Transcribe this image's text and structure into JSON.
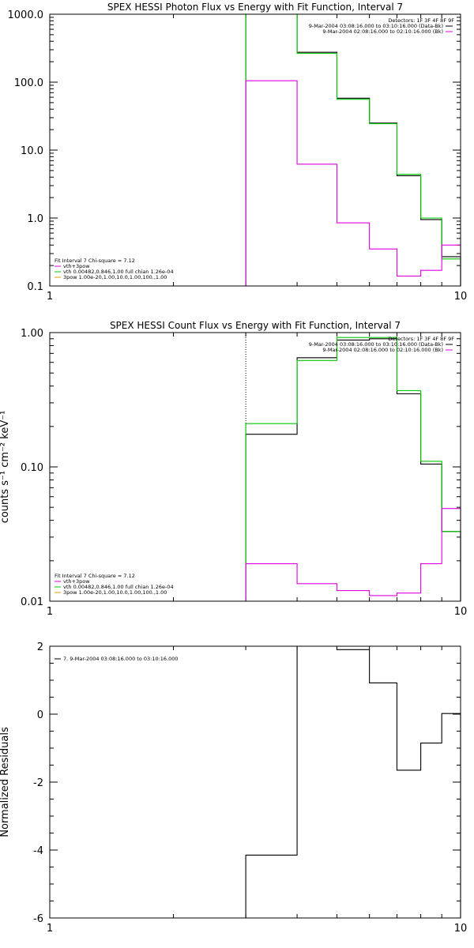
{
  "chart_data": [
    {
      "type": "line",
      "title": "SPEX HESSI Photon Flux vs Energy with Fit Function, Interval 7",
      "xscale": "log",
      "yscale": "log",
      "xlim": [
        1,
        10
      ],
      "ylim": [
        0.1,
        1000
      ],
      "x_ticks": [
        {
          "v": 1,
          "label": "1"
        },
        {
          "v": 10,
          "label": "10"
        }
      ],
      "y_ticks": [
        {
          "v": 0.1,
          "label": "0.1"
        },
        {
          "v": 1,
          "label": "1.0"
        },
        {
          "v": 10,
          "label": "10.0"
        },
        {
          "v": 100,
          "label": "100.0"
        },
        {
          "v": 1000,
          "label": "1000.0"
        }
      ],
      "ylabel": "",
      "vline": 3.0,
      "bin_edges": [
        3.0,
        4.0,
        5.0,
        6.0,
        7.0,
        8.0,
        9.0,
        10.0
      ],
      "series": [
        {
          "key": "data",
          "color": "#000000",
          "values": [
            1000,
            275,
            58,
            25,
            4.2,
            0.95,
            0.27
          ]
        },
        {
          "key": "fit",
          "color": "#00c800",
          "values": [
            1000,
            265,
            56,
            24.5,
            4.4,
            1.0,
            0.25
          ]
        },
        {
          "key": "background",
          "color": "#e000e0",
          "values": [
            105,
            6.2,
            0.85,
            0.35,
            0.14,
            0.17,
            0.4
          ]
        }
      ],
      "legend_right": {
        "header": "Detectors: 1F 3F 4F 8F 9F",
        "entries": [
          {
            "text": "9-Mar-2004 03:08:16.000 to 03:10:16.000 (Data-Bk)",
            "color": "#000000"
          },
          {
            "text": "9-Mar-2004 02:08:16.000 to 02:10:16.000 (Bk)",
            "color": "#e000e0"
          }
        ]
      },
      "legend_left": {
        "header": "Fit Interval 7   Chi-square = 7.12",
        "entries": [
          {
            "text": "vth+3pow",
            "color": "#e000e0"
          },
          {
            "text": "vth 0.00482,0.846,1.00  full chian 1.26e-04",
            "color": "#00c800"
          },
          {
            "text": "3pow 1.00e-20,1.00,10.0,1.00,100.,1.00",
            "color": "#e0a000"
          }
        ]
      }
    },
    {
      "type": "line",
      "title": "SPEX HESSI Count Flux vs Energy with Fit Function, Interval 7",
      "xscale": "log",
      "yscale": "log",
      "xlim": [
        1,
        10
      ],
      "ylim": [
        0.01,
        1.0
      ],
      "x_ticks": [
        {
          "v": 1,
          "label": "1"
        },
        {
          "v": 10,
          "label": "10"
        }
      ],
      "y_ticks": [
        {
          "v": 0.01,
          "label": "0.01"
        },
        {
          "v": 0.1,
          "label": "0.10"
        },
        {
          "v": 1,
          "label": "1.00"
        }
      ],
      "ylabel": "counts s⁻¹ cm⁻² keV⁻¹",
      "vline": 3.0,
      "bin_edges": [
        3.0,
        4.0,
        5.0,
        6.0,
        7.0,
        8.0,
        9.0,
        10.0
      ],
      "series": [
        {
          "key": "data",
          "color": "#000000",
          "values": [
            0.175,
            0.65,
            0.88,
            0.9,
            0.35,
            0.105,
            0.033
          ]
        },
        {
          "key": "fit",
          "color": "#00c800",
          "values": [
            0.21,
            0.62,
            0.92,
            0.92,
            0.37,
            0.11,
            0.033
          ]
        },
        {
          "key": "background",
          "color": "#e000e0",
          "values": [
            0.019,
            0.0135,
            0.012,
            0.011,
            0.0115,
            0.019,
            0.049
          ]
        }
      ],
      "legend_right": {
        "header": "Detectors: 1F 3F 4F 8F 9F",
        "entries": [
          {
            "text": "9-Mar-2004 03:08:16.000 to 03:10:16.000 (Data-Bk)",
            "color": "#000000"
          },
          {
            "text": "9-Mar-2004 02:08:16.000 to 02:10:16.000 (Bk)",
            "color": "#e000e0"
          }
        ]
      },
      "legend_left": {
        "header": "Fit Interval 7   Chi-square = 7.12",
        "entries": [
          {
            "text": "vth+3pow",
            "color": "#e000e0"
          },
          {
            "text": "vth 0.00482,0.846,1.00  full chian 1.26e-04",
            "color": "#00c800"
          },
          {
            "text": "3pow 1.00e-20,1.00,10.0,1.00,100.,1.00",
            "color": "#e0a000"
          }
        ]
      }
    },
    {
      "type": "line",
      "title": "",
      "xscale": "log",
      "yscale": "linear",
      "xlim": [
        1,
        10
      ],
      "ylim": [
        -6,
        2
      ],
      "x_ticks": [
        {
          "v": 1,
          "label": "1"
        },
        {
          "v": 10,
          "label": "10"
        }
      ],
      "y_ticks": [
        {
          "v": -6,
          "label": "-6"
        },
        {
          "v": -4,
          "label": "-4"
        },
        {
          "v": -2,
          "label": "-2"
        },
        {
          "v": 0,
          "label": "0"
        },
        {
          "v": 2,
          "label": "2"
        }
      ],
      "ylabel": "Normalized  Residuals",
      "bin_edges": [
        3.0,
        4.0,
        5.0,
        6.0,
        7.0,
        8.0,
        9.0,
        10.0
      ],
      "series": [
        {
          "key": "residuals",
          "color": "#000000",
          "values": [
            -4.15,
            2.0,
            1.9,
            0.92,
            -1.65,
            -0.85,
            0.02
          ]
        }
      ],
      "legend_left": {
        "header": "",
        "entries": [
          {
            "text": "7.  9-Mar-2004 03:08:16.000 to 03:10:16.000",
            "color": "#000000"
          }
        ]
      }
    }
  ]
}
